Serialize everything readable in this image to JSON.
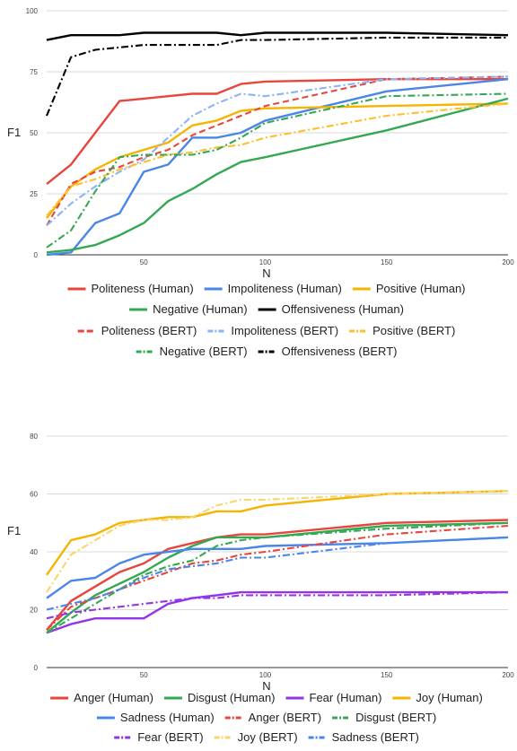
{
  "chart_data": [
    {
      "type": "line",
      "xlabel": "N",
      "ylabel": "F1",
      "xlim": [
        10,
        200
      ],
      "ylim": [
        0,
        100
      ],
      "xticks": [
        "50",
        "100",
        "150",
        "200"
      ],
      "yticks": [
        "0",
        "25",
        "50",
        "75",
        "100"
      ],
      "grid": true,
      "legend_position": "bottom",
      "series": [
        {
          "name": "Politeness (Human)",
          "color": "#e8453c",
          "style": "solid",
          "x": [
            10,
            20,
            30,
            40,
            50,
            60,
            70,
            80,
            90,
            100,
            150,
            200
          ],
          "y": [
            29,
            37,
            50,
            63,
            64,
            65,
            66,
            66,
            70,
            71,
            72,
            72
          ]
        },
        {
          "name": "Impoliteness (Human)",
          "color": "#4a86e8",
          "style": "solid",
          "x": [
            10,
            20,
            30,
            40,
            50,
            60,
            70,
            80,
            90,
            100,
            150,
            200
          ],
          "y": [
            0,
            1,
            13,
            17,
            34,
            37,
            48,
            48,
            50,
            55,
            67,
            72
          ]
        },
        {
          "name": "Positive (Human)",
          "color": "#f4b400",
          "style": "solid",
          "x": [
            10,
            20,
            30,
            40,
            50,
            60,
            70,
            80,
            90,
            100,
            150,
            200
          ],
          "y": [
            15,
            28,
            35,
            40,
            43,
            46,
            53,
            55,
            59,
            60,
            61,
            62
          ]
        },
        {
          "name": "Negative (Human)",
          "color": "#34a853",
          "style": "solid",
          "x": [
            10,
            20,
            30,
            40,
            50,
            60,
            70,
            80,
            90,
            100,
            150,
            200
          ],
          "y": [
            1,
            2,
            4,
            8,
            13,
            22,
            27,
            33,
            38,
            40,
            51,
            64
          ]
        },
        {
          "name": "Offensiveness (Human)",
          "color": "#000000",
          "style": "solid",
          "x": [
            10,
            20,
            30,
            40,
            50,
            60,
            70,
            80,
            90,
            100,
            150,
            200
          ],
          "y": [
            88,
            90,
            90,
            90,
            91,
            91,
            91,
            91,
            90,
            91,
            91,
            90
          ]
        },
        {
          "name": "Politeness (BERT)",
          "color": "#e8453c",
          "style": "dash",
          "x": [
            10,
            20,
            30,
            40,
            50,
            60,
            70,
            80,
            90,
            100,
            150,
            200
          ],
          "y": [
            12,
            29,
            34,
            36,
            40,
            43,
            49,
            53,
            57,
            61,
            72,
            73
          ]
        },
        {
          "name": "Impoliteness (BERT)",
          "color": "#8ab4f8",
          "style": "dashdot",
          "x": [
            10,
            20,
            30,
            40,
            50,
            60,
            70,
            80,
            90,
            100,
            150,
            200
          ],
          "y": [
            12,
            21,
            28,
            34,
            39,
            48,
            57,
            62,
            66,
            65,
            72,
            73
          ]
        },
        {
          "name": "Positive (BERT)",
          "color": "#fbc02d",
          "style": "dashdot",
          "x": [
            10,
            20,
            30,
            40,
            50,
            60,
            70,
            80,
            90,
            100,
            150,
            200
          ],
          "y": [
            16,
            28,
            31,
            35,
            38,
            41,
            42,
            44,
            45,
            48,
            57,
            62
          ]
        },
        {
          "name": "Negative (BERT)",
          "color": "#34a853",
          "style": "dashdot",
          "x": [
            10,
            20,
            30,
            40,
            50,
            60,
            70,
            80,
            90,
            100,
            150,
            200
          ],
          "y": [
            3,
            10,
            26,
            40,
            41,
            41,
            41,
            43,
            48,
            54,
            65,
            66
          ]
        },
        {
          "name": "Offensiveness (BERT)",
          "color": "#000000",
          "style": "dashdot",
          "x": [
            10,
            20,
            30,
            40,
            50,
            60,
            70,
            80,
            90,
            100,
            150,
            200
          ],
          "y": [
            57,
            81,
            84,
            85,
            86,
            86,
            86,
            86,
            88,
            88,
            89,
            89
          ]
        }
      ]
    },
    {
      "type": "line",
      "xlabel": "N",
      "ylabel": "F1",
      "xlim": [
        10,
        200
      ],
      "ylim": [
        0,
        80
      ],
      "xticks": [
        "50",
        "100",
        "150",
        "200"
      ],
      "yticks": [
        "0",
        "20",
        "40",
        "60",
        "80"
      ],
      "grid": true,
      "legend_position": "bottom",
      "series": [
        {
          "name": "Anger (Human)",
          "color": "#e8453c",
          "style": "solid",
          "x": [
            10,
            20,
            30,
            40,
            50,
            60,
            70,
            80,
            90,
            100,
            150,
            200
          ],
          "y": [
            13,
            23,
            28,
            33,
            36,
            41,
            43,
            45,
            46,
            46,
            50,
            51
          ]
        },
        {
          "name": "Disgust (Human)",
          "color": "#34a853",
          "style": "solid",
          "x": [
            10,
            20,
            30,
            40,
            50,
            60,
            70,
            80,
            90,
            100,
            150,
            200
          ],
          "y": [
            12,
            19,
            25,
            29,
            33,
            38,
            42,
            45,
            45,
            45,
            49,
            50
          ]
        },
        {
          "name": "Fear (Human)",
          "color": "#9334e6",
          "style": "solid",
          "x": [
            10,
            20,
            30,
            40,
            50,
            60,
            70,
            80,
            90,
            100,
            150,
            200
          ],
          "y": [
            12,
            15,
            17,
            17,
            17,
            22,
            24,
            25,
            26,
            26,
            26,
            26
          ]
        },
        {
          "name": "Joy (Human)",
          "color": "#f4b400",
          "style": "solid",
          "x": [
            10,
            20,
            30,
            40,
            50,
            60,
            70,
            80,
            90,
            100,
            150,
            200
          ],
          "y": [
            32,
            44,
            46,
            50,
            51,
            52,
            52,
            54,
            54,
            56,
            60,
            61
          ]
        },
        {
          "name": "Sadness (Human)",
          "color": "#4a86e8",
          "style": "solid",
          "x": [
            10,
            20,
            30,
            40,
            50,
            60,
            70,
            80,
            90,
            100,
            150,
            200
          ],
          "y": [
            24,
            30,
            31,
            36,
            39,
            40,
            41,
            41,
            41,
            42,
            43,
            45
          ]
        },
        {
          "name": "Anger (BERT)",
          "color": "#e8453c",
          "style": "dashdot",
          "x": [
            10,
            20,
            30,
            40,
            50,
            60,
            70,
            80,
            90,
            100,
            150,
            200
          ],
          "y": [
            13,
            21,
            24,
            27,
            30,
            33,
            36,
            37,
            39,
            40,
            46,
            49
          ]
        },
        {
          "name": "Disgust (BERT)",
          "color": "#34a853",
          "style": "dashdot",
          "x": [
            10,
            20,
            30,
            40,
            50,
            60,
            70,
            80,
            90,
            100,
            150,
            200
          ],
          "y": [
            12,
            17,
            22,
            27,
            32,
            35,
            37,
            42,
            44,
            45,
            48,
            50
          ]
        },
        {
          "name": "Fear (BERT)",
          "color": "#9334e6",
          "style": "dashdot",
          "x": [
            10,
            20,
            30,
            40,
            50,
            60,
            70,
            80,
            90,
            100,
            150,
            200
          ],
          "y": [
            17,
            19,
            20,
            21,
            22,
            23,
            24,
            24,
            25,
            25,
            25,
            26
          ]
        },
        {
          "name": "Joy (BERT)",
          "color": "#fbd46b",
          "style": "dashdot",
          "x": [
            10,
            20,
            30,
            40,
            50,
            60,
            70,
            80,
            90,
            100,
            150,
            200
          ],
          "y": [
            26,
            39,
            44,
            49,
            51,
            51,
            52,
            56,
            58,
            58,
            60,
            61
          ]
        },
        {
          "name": "Sadness (BERT)",
          "color": "#4a86e8",
          "style": "dashdot",
          "x": [
            10,
            20,
            30,
            40,
            50,
            60,
            70,
            80,
            90,
            100,
            150,
            200
          ],
          "y": [
            20,
            22,
            24,
            27,
            31,
            34,
            35,
            36,
            38,
            38,
            43,
            45
          ]
        }
      ]
    }
  ]
}
